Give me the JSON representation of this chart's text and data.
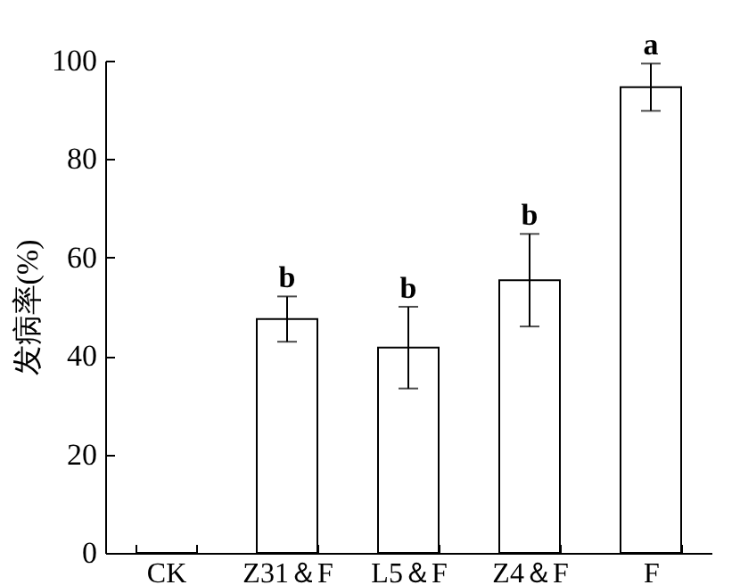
{
  "chart_data": {
    "type": "bar",
    "ylabel": "发病率(%)",
    "categories": [
      "CK",
      "Z31＆F",
      "L5＆F",
      "Z4＆F",
      "F"
    ],
    "values": [
      0,
      47.5,
      41.7,
      55.4,
      94.6
    ],
    "errors": [
      null,
      4.6,
      8.3,
      9.4,
      4.8
    ],
    "color": "#ffffff",
    "ylim": [
      0,
      100
    ],
    "yticks": [
      0,
      20,
      40,
      60,
      80,
      100
    ],
    "grid": false,
    "annotations": [
      {
        "text": "b",
        "x": "Z31＆F",
        "y": 52.1
      },
      {
        "text": "b",
        "x": "L5＆F",
        "y": 50
      },
      {
        "text": "b",
        "x": "Z4＆F",
        "y": 64.8
      },
      {
        "text": "a",
        "x": "F",
        "y": 99.4
      }
    ]
  }
}
